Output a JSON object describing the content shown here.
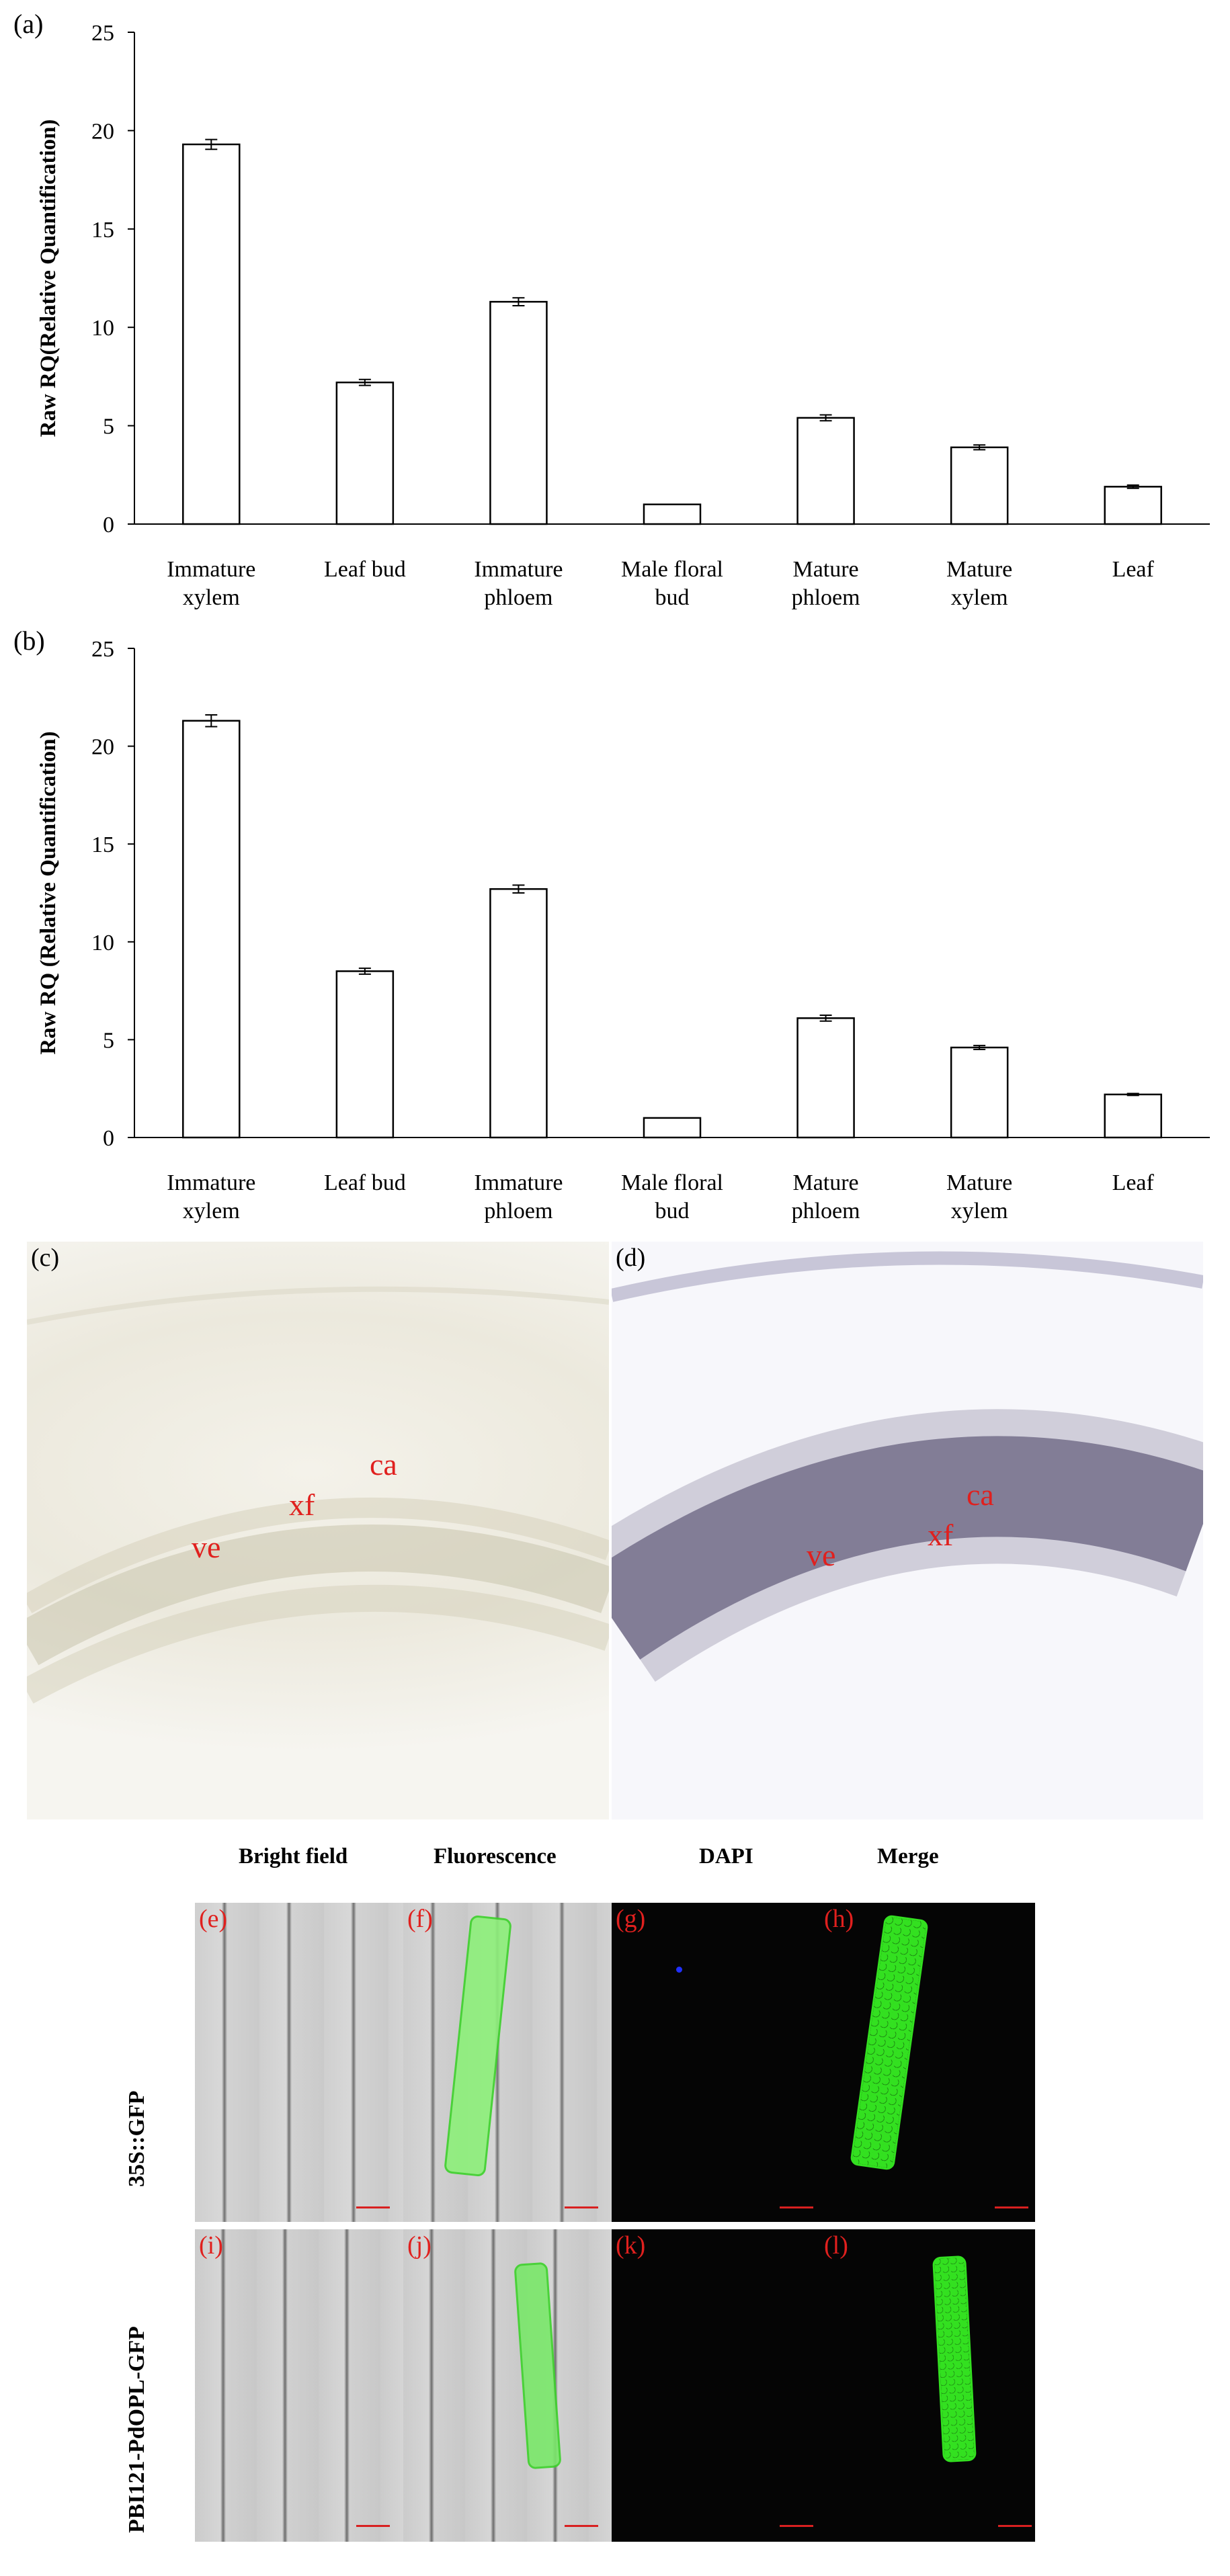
{
  "chart_data": [
    {
      "type": "bar",
      "panel": "(a)",
      "categories": [
        [
          "Immature",
          "xylem"
        ],
        [
          "Leaf bud"
        ],
        [
          "Immature",
          "phloem"
        ],
        [
          "Male floral",
          "bud"
        ],
        [
          "Mature",
          "phloem"
        ],
        [
          "Mature",
          "xylem"
        ],
        [
          "Leaf"
        ]
      ],
      "values": [
        19.3,
        7.2,
        11.3,
        1.0,
        5.4,
        3.9,
        1.9
      ],
      "errors": [
        0.25,
        0.15,
        0.2,
        0.0,
        0.15,
        0.12,
        0.08
      ],
      "ylabel": "Raw RQ(Relative Quantification)",
      "ylim": [
        0,
        25
      ],
      "yticks": [
        0,
        5,
        10,
        15,
        20,
        25
      ],
      "grid": false
    },
    {
      "type": "bar",
      "panel": "(b)",
      "categories": [
        [
          "Immature",
          "xylem"
        ],
        [
          "Leaf bud"
        ],
        [
          "Immature",
          "phloem"
        ],
        [
          "Male floral",
          "bud"
        ],
        [
          "Mature",
          "phloem"
        ],
        [
          "Mature",
          "xylem"
        ],
        [
          "Leaf"
        ]
      ],
      "values": [
        21.3,
        8.5,
        12.7,
        1.0,
        6.1,
        4.6,
        2.2
      ],
      "errors": [
        0.3,
        0.15,
        0.2,
        0.0,
        0.15,
        0.1,
        0.05
      ],
      "ylabel": "Raw RQ (Relative Quantification)",
      "ylim": [
        0,
        25
      ],
      "yticks": [
        0,
        5,
        10,
        15,
        20,
        25
      ],
      "grid": false
    }
  ],
  "panels": {
    "c": {
      "letter": "(c)",
      "labels": {
        "ca": "ca",
        "xf": "xf",
        "ve": "ve"
      }
    },
    "d": {
      "letter": "(d)",
      "labels": {
        "ca": "ca",
        "xf": "xf",
        "ve": "ve"
      }
    }
  },
  "fluorescence": {
    "columns": [
      "Bright field",
      "Fluorescence",
      "DAPI",
      "Merge"
    ],
    "rows": [
      "35S::GFP",
      "PBI121-PdOPL-GFP"
    ],
    "letters": [
      "(e)",
      "(f)",
      "(g)",
      "(h)",
      "(i)",
      "(j)",
      "(k)",
      "(l)"
    ]
  },
  "colors": {
    "label_red": "#e0201e",
    "gfp_green": "#33e020",
    "dapi_blue": "#2030ff"
  }
}
